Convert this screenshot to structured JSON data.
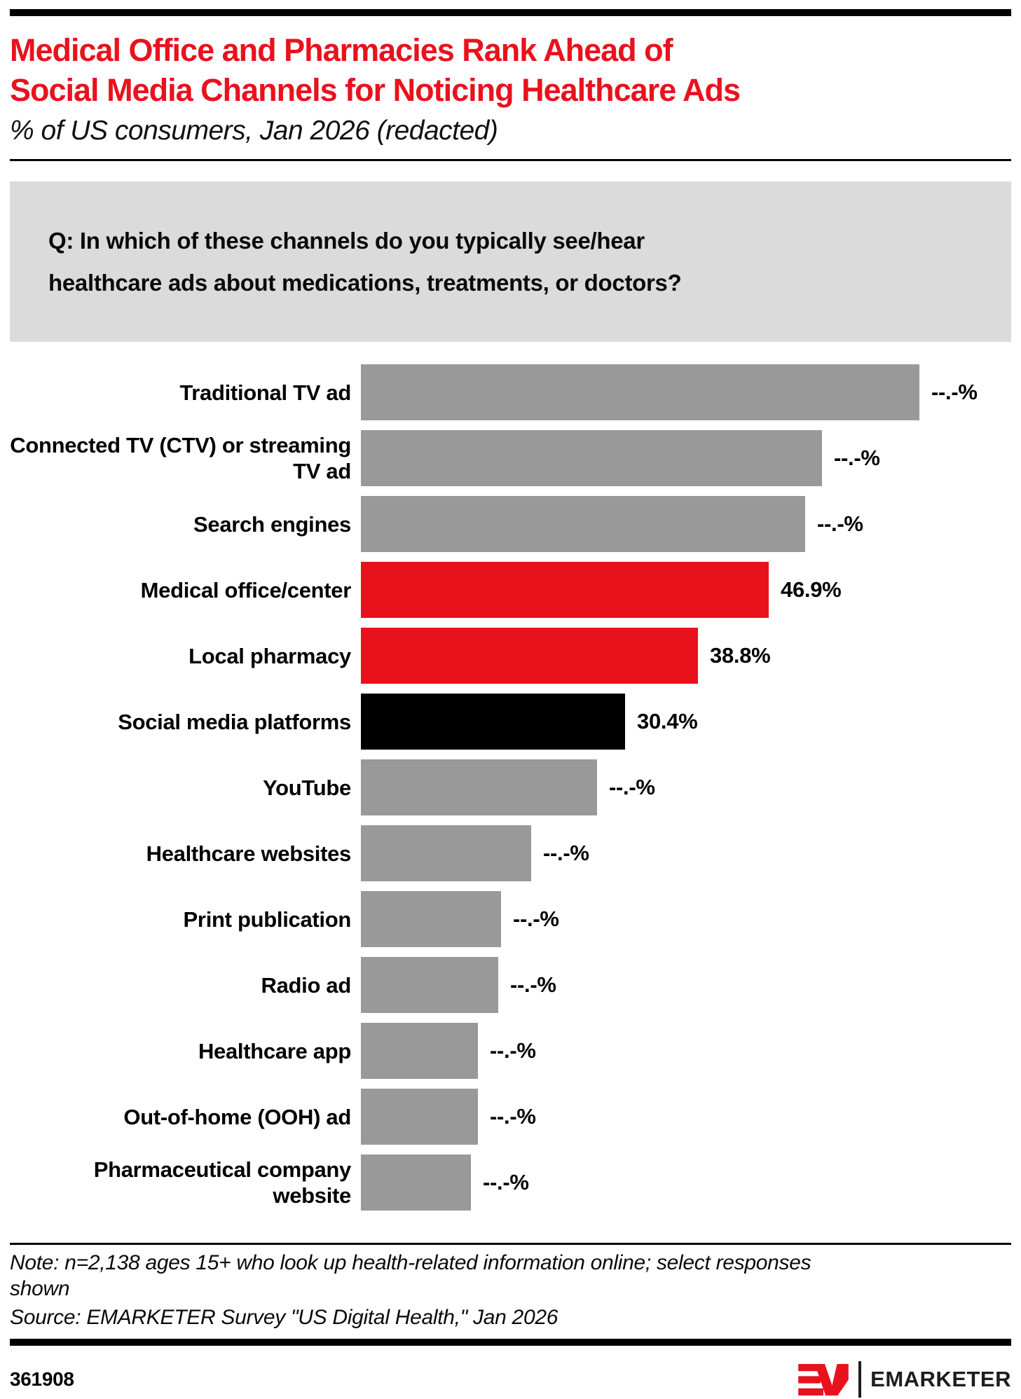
{
  "page": {
    "accent_red": "#e8121d",
    "bar_gray": "#999999",
    "bar_black": "#000000",
    "question_box_bg": "#dbdbdb"
  },
  "header": {
    "title_line1": "Medical Office and Pharmacies Rank Ahead of",
    "title_line2": "Social Media Channels for Noticing Healthcare Ads",
    "subtitle": "% of US consumers, Jan 2026 (redacted)"
  },
  "question": {
    "line1": "Q: In which of these channels do you typically see/hear",
    "line2": "healthcare ads about medications, treatments, or doctors?"
  },
  "chart_data": {
    "type": "bar",
    "orientation": "horizontal",
    "unit": "%",
    "title": "% of US consumers, Jan 2026 (redacted)",
    "categories": [
      "Traditional TV ad",
      "Connected TV (CTV) or streaming TV ad",
      "Search engines",
      "Medical office/center",
      "Local pharmacy",
      "Social media platforms",
      "YouTube",
      "Healthcare websites",
      "Print publication",
      "Radio ad",
      "Healthcare app",
      "Out-of-home (OOH) ad",
      "Pharmaceutical company website"
    ],
    "values": [
      null,
      null,
      null,
      46.9,
      38.8,
      30.4,
      null,
      null,
      null,
      null,
      null,
      null,
      null
    ],
    "value_labels": [
      "--.-%",
      "--.-%",
      "--.-%",
      "46.9%",
      "38.8%",
      "30.4%",
      "--.-%",
      "--.-%",
      "--.-%",
      "--.-%",
      "--.-%",
      "--.-%",
      "--.-%"
    ],
    "estimated_bar_pct": [
      64.3,
      53.1,
      51.1,
      46.9,
      38.8,
      30.4,
      27.2,
      19.6,
      16.1,
      15.8,
      13.5,
      13.5,
      12.7
    ],
    "bar_colors": [
      "#999999",
      "#999999",
      "#999999",
      "#e8121d",
      "#e8121d",
      "#000000",
      "#999999",
      "#999999",
      "#999999",
      "#999999",
      "#999999",
      "#999999",
      "#999999"
    ],
    "xlim": [
      0,
      70
    ],
    "grid": false,
    "legend": "none"
  },
  "footer": {
    "note_line1": "Note: n=2,138 ages 15+ who look up health-related information online; select responses",
    "note_line2": "shown",
    "source": "Source: EMARKETER Survey \"US Digital Health,\" Jan 2026",
    "chart_id": "361908",
    "brand": "EMARKETER"
  }
}
